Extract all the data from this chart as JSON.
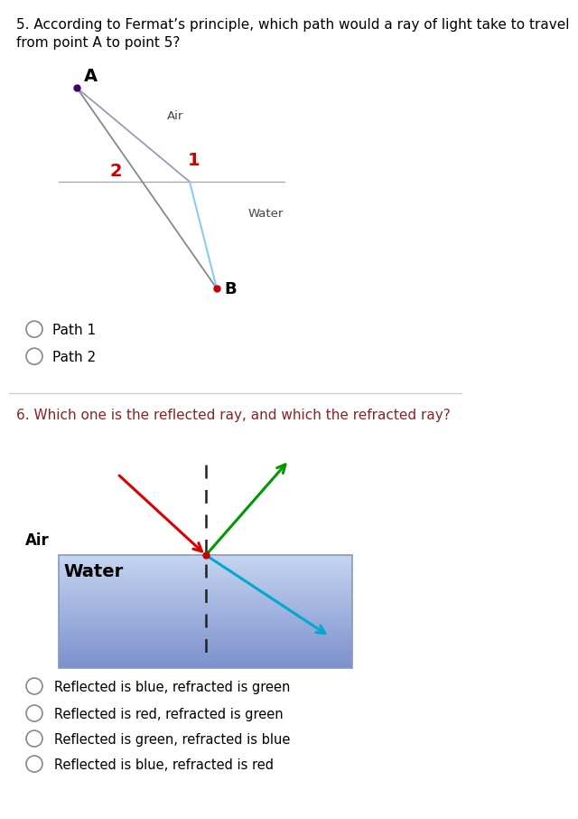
{
  "bg_color": "#ffffff",
  "q5": {
    "question_line1": "5. According to Fermat’s principle, which path would a ray of light take to travel",
    "question_line2": "from point A to point 5?",
    "question_color": "#000000",
    "air_label": "Air",
    "water_label": "Water",
    "label1": "1",
    "label2": "2",
    "label1_color": "#cc0000",
    "label2_color": "#cc0000",
    "path1_color_air": "#9999bb",
    "path1_color_water": "#87ceeb",
    "path2_color": "#888888",
    "dot_color_A": "#440066",
    "dot_color_B": "#cc0000",
    "options": [
      "Path 1",
      "Path 2"
    ]
  },
  "q6": {
    "question_text": "6. Which one is the reflected ray, and which the refracted ray?",
    "question_color": "#8B2222",
    "air_label": "Air",
    "water_label": "Water",
    "water_color_top": "#c5d4ee",
    "water_color_bot": "#7a8fcc",
    "water_border": "#8899bb",
    "red_color": "#dd0000",
    "green_color": "#009900",
    "blue_color": "#00aacc",
    "dashed_color": "#222222",
    "dot_color": "#cc0000",
    "options": [
      "Reflected is blue, refracted is green",
      "Reflected is red, refracted is green",
      "Reflected is green, refracted is blue",
      "Reflected is blue, refracted is red"
    ]
  }
}
